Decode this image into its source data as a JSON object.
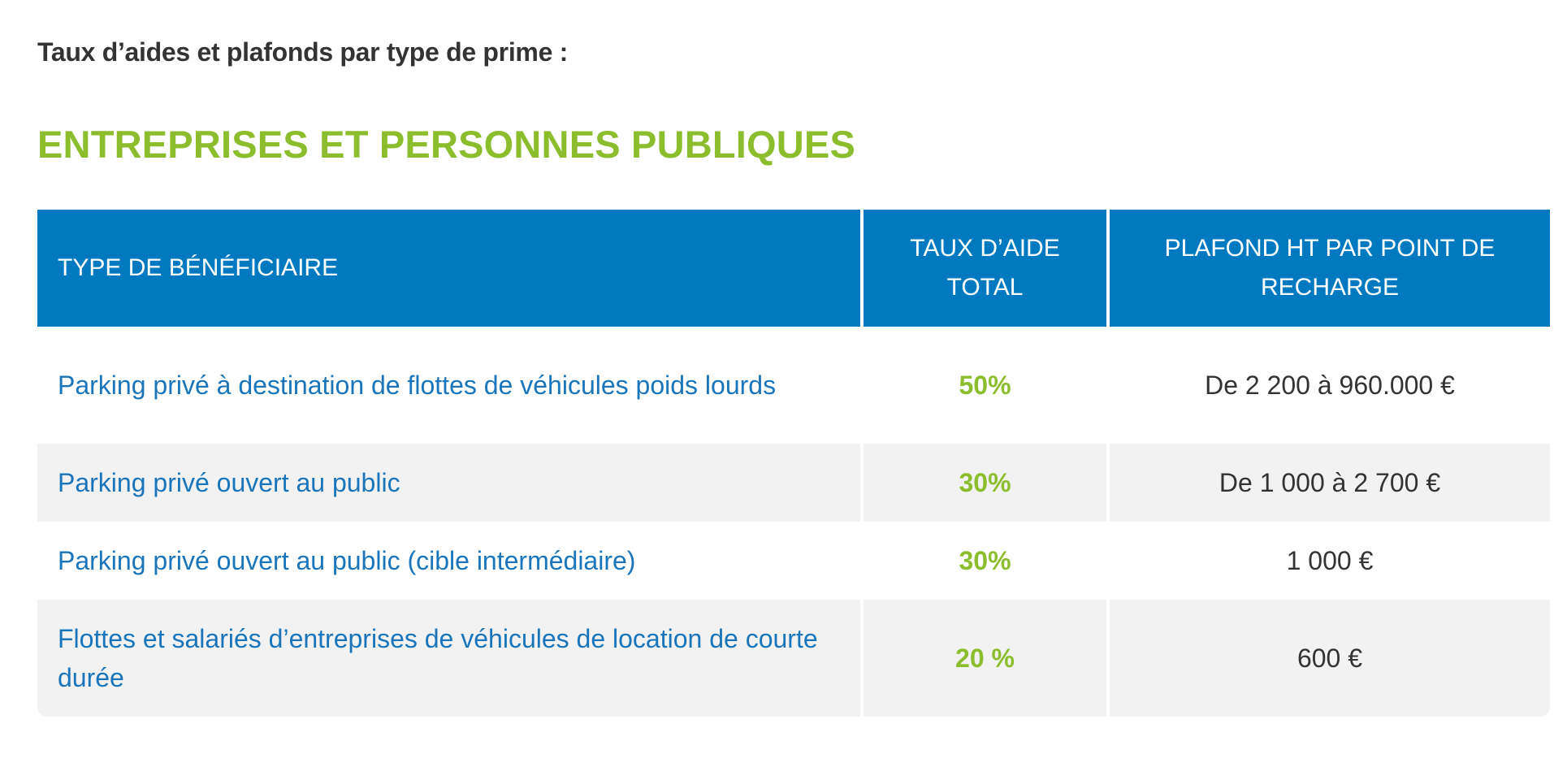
{
  "intro": "Taux d’aides et plafonds par type de prime :",
  "section_title": "ENTREPRISES ET PERSONNES PUBLIQUES",
  "colors": {
    "header_bg": "#0079c1",
    "accent_green": "#8cbd2d",
    "link_blue": "#1a75bb",
    "row_alt": "#f2f2f2"
  },
  "table": {
    "headers": [
      "TYPE DE BÉNÉFICIAIRE",
      "TAUX D’AIDE TOTAL",
      "PLAFOND HT PAR POINT DE RECHARGE"
    ],
    "rows": [
      {
        "type": "Parking privé à destination de flottes de véhicules poids lourds",
        "rate": "50%",
        "cap": "De 2 200 à 960.000 €"
      },
      {
        "type": "Parking privé ouvert au public",
        "rate": "30%",
        "cap": "De 1 000 à 2 700 €"
      },
      {
        "type": "Parking privé ouvert au public (cible intermédiaire)",
        "rate": "30%",
        "cap": "1 000 €"
      },
      {
        "type": "Flottes et salariés d’entreprises de véhicules de location de courte durée",
        "rate": "20 %",
        "cap": "600 €"
      }
    ]
  }
}
